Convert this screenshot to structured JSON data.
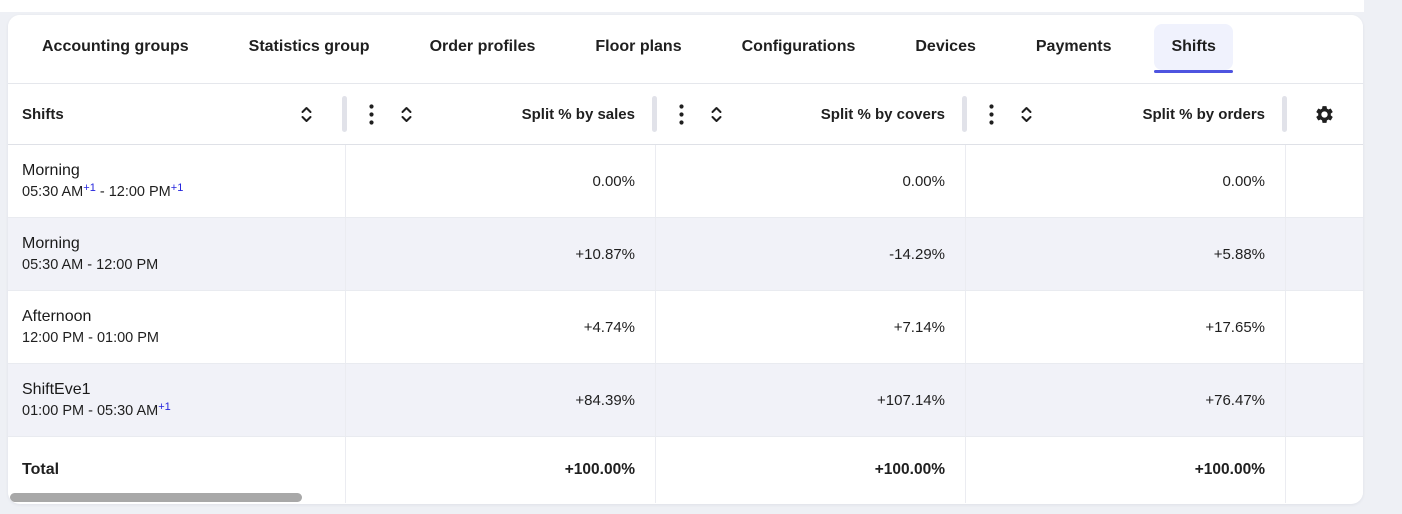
{
  "tabs": {
    "items": [
      {
        "label": "Accounting groups",
        "active": false
      },
      {
        "label": "Statistics group",
        "active": false
      },
      {
        "label": "Order profiles",
        "active": false
      },
      {
        "label": "Floor plans",
        "active": false
      },
      {
        "label": "Configurations",
        "active": false
      },
      {
        "label": "Devices",
        "active": false
      },
      {
        "label": "Payments",
        "active": false
      },
      {
        "label": "Shifts",
        "active": true
      }
    ]
  },
  "table": {
    "first_column_label": "Shifts",
    "value_columns": [
      {
        "label": "Split % by sales"
      },
      {
        "label": "Split % by covers"
      },
      {
        "label": "Split % by orders"
      }
    ],
    "rows": [
      {
        "name": "Morning",
        "time": [
          {
            "text": "05:30 AM"
          },
          {
            "sup": "+1"
          },
          {
            "text": " - 12:00 PM"
          },
          {
            "sup": "+1"
          }
        ],
        "values": [
          "0.00%",
          "0.00%",
          "0.00%"
        ],
        "striped": false
      },
      {
        "name": "Morning",
        "time": [
          {
            "text": "05:30 AM - 12:00 PM"
          }
        ],
        "values": [
          "+10.87%",
          "-14.29%",
          "+5.88%"
        ],
        "striped": true
      },
      {
        "name": "Afternoon",
        "time": [
          {
            "text": "12:00 PM - 01:00 PM"
          }
        ],
        "values": [
          "+4.74%",
          "+7.14%",
          "+17.65%"
        ],
        "striped": false
      },
      {
        "name": "ShiftEve1",
        "time": [
          {
            "text": "01:00 PM - 05:30 AM"
          },
          {
            "sup": "+1"
          }
        ],
        "values": [
          "+84.39%",
          "+107.14%",
          "+76.47%"
        ],
        "striped": true
      }
    ],
    "total_row": {
      "label": "Total",
      "values": [
        "+100.00%",
        "+100.00%",
        "+100.00%"
      ]
    }
  },
  "icons": {
    "sort": "sort-icon",
    "kebab": "column-menu-icon",
    "gear": "settings-gear-icon"
  },
  "colors": {
    "accent": "#4e54e0",
    "active_tab_bg": "#f0f2fd",
    "stripe": "#f1f2f8",
    "sup_blue": "#2424dd",
    "page_bg": "#eef0f5",
    "scrollbar": "#a8a8a8"
  }
}
